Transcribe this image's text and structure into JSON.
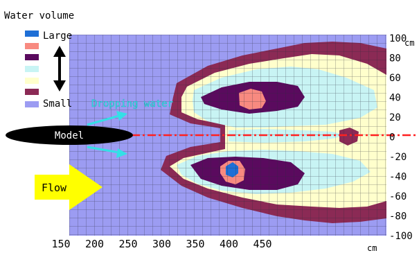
{
  "title": "Water volume",
  "legend": {
    "large_label": "Large",
    "small_label": "Small",
    "levels": [
      {
        "color": "#1f6fd6"
      },
      {
        "color": "#f88a80"
      },
      {
        "color": "#5a0a5e"
      },
      {
        "color": "#c8f4f4"
      },
      {
        "color": "#ffffcc"
      },
      {
        "color": "#8b2a55"
      },
      {
        "color": "#9c9cf2"
      }
    ]
  },
  "labels": {
    "dropping_water": "Dropping water",
    "model": "Model",
    "flow": "Flow"
  },
  "x_axis": {
    "unit": "cm",
    "ticks": [
      "150",
      "200",
      "250",
      "300",
      "350",
      "400",
      "450"
    ]
  },
  "y_axis": {
    "unit": "cm",
    "ticks": [
      "100",
      "80",
      "60",
      "40",
      "20",
      "0",
      "-20",
      "-40",
      "-60",
      "-80",
      "-100"
    ]
  },
  "colors": {
    "grid_background": "#9c9cf2",
    "grid_line": "#2a2a3a",
    "center_line": "#ff2020",
    "flow_arrow": "#ffff00",
    "dropping_arrow": "#33e0e6",
    "dropping_text": "#33e0e6"
  }
}
